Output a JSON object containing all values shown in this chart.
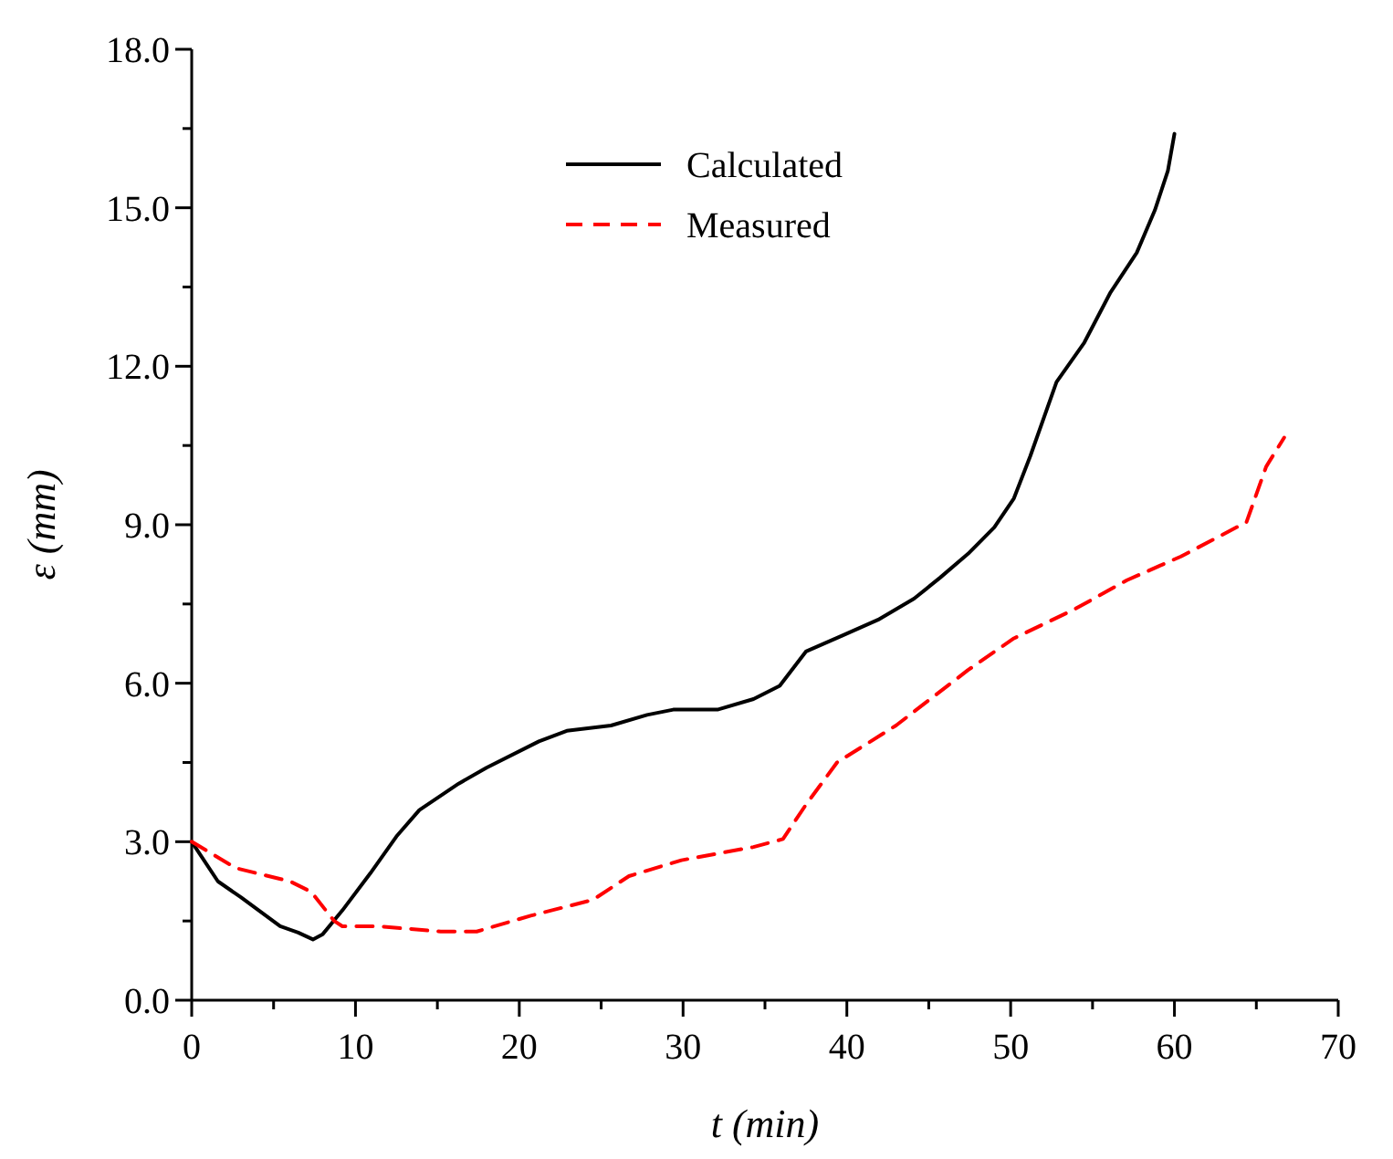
{
  "chart_data": {
    "type": "line",
    "xlabel": "t (min)",
    "ylabel": "ε (mm)",
    "xlim": [
      0,
      70
    ],
    "ylim": [
      0,
      18
    ],
    "xticks": [
      0,
      {
        "value": 5,
        "label": null
      },
      10,
      {
        "value": 15,
        "label": null
      },
      20,
      {
        "value": 25,
        "label": null
      },
      30,
      {
        "value": 35,
        "label": null
      },
      40,
      {
        "value": 45,
        "label": null
      },
      50,
      {
        "value": 55,
        "label": null
      },
      60,
      {
        "value": 65,
        "label": null
      },
      70
    ],
    "yticks": [
      {
        "value": 0,
        "label": "0.0"
      },
      {
        "value": 1.5,
        "label": null
      },
      {
        "value": 3,
        "label": "3.0"
      },
      {
        "value": 4.5,
        "label": null
      },
      {
        "value": 6,
        "label": "6.0"
      },
      {
        "value": 7.5,
        "label": null
      },
      {
        "value": 9,
        "label": "9.0"
      },
      {
        "value": 10.5,
        "label": null
      },
      {
        "value": 12,
        "label": "12.0"
      },
      {
        "value": 13.5,
        "label": null
      },
      {
        "value": 15,
        "label": "15.0"
      },
      {
        "value": 16.5,
        "label": null
      },
      {
        "value": 18,
        "label": "18.0"
      }
    ],
    "legend": "top",
    "grid": false,
    "series": [
      {
        "name": "Calculated",
        "color": "#000000",
        "line_style": "solid",
        "x": [
          0,
          1.6,
          3,
          5.4,
          6.5,
          7.4,
          8,
          9.2,
          10.9,
          12.5,
          13.9,
          16.3,
          18,
          21.2,
          22.9,
          25.6,
          27.8,
          29.4,
          32.1,
          34.3,
          35.9,
          37.5,
          39.7,
          41.9,
          44.1,
          45.7,
          47.4,
          49,
          50.2,
          51.2,
          52.8,
          54.5,
          56.1,
          57.7,
          58.8,
          59.6,
          60
        ],
        "values": [
          3,
          2.25,
          1.95,
          1.4,
          1.28,
          1.15,
          1.25,
          1.7,
          2.4,
          3.1,
          3.6,
          4.1,
          4.4,
          4.9,
          5.1,
          5.2,
          5.4,
          5.5,
          5.5,
          5.7,
          5.95,
          6.6,
          6.9,
          7.2,
          7.6,
          8,
          8.45,
          8.95,
          9.5,
          10.3,
          11.7,
          12.45,
          13.4,
          14.15,
          14.95,
          15.7,
          16.4
        ]
      },
      {
        "name": "Measured",
        "color": "#ff0000",
        "line_style": "dashed",
        "x": [
          0,
          2.7,
          6,
          7.3,
          8.7,
          9.2,
          11.4,
          15.2,
          17.4,
          20.7,
          24.5,
          26.7,
          29.9,
          34.3,
          36.1,
          37.5,
          39.4,
          43,
          47.4,
          50.2,
          53.9,
          57.1,
          60.4,
          64.4,
          65.6,
          66.7
        ],
        "values": [
          3,
          2.5,
          2.25,
          2.05,
          1.5,
          1.4,
          1.4,
          1.3,
          1.3,
          1.6,
          1.9,
          2.35,
          2.65,
          2.9,
          3.05,
          3.7,
          4.5,
          5.2,
          6.25,
          6.85,
          7.4,
          7.95,
          8.4,
          9.05,
          10.1,
          10.65
        ]
      }
    ]
  }
}
